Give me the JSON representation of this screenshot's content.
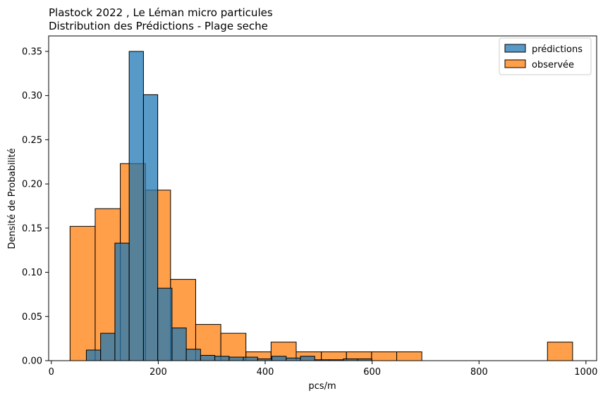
{
  "chart_data": {
    "type": "bar",
    "title_line1": "Plastock 2022 , Le Léman micro particules",
    "title_line2": "Distribution des Prédictions - Plage seche",
    "xlabel": "pcs/m",
    "ylabel": "Densité de Probabilité",
    "xlim": [
      -5,
      1020
    ],
    "ylim": [
      0,
      0.3675
    ],
    "x_ticks": [
      0,
      200,
      400,
      600,
      800,
      1000
    ],
    "y_ticks": [
      0.0,
      0.05,
      0.1,
      0.15,
      0.2,
      0.25,
      0.3,
      0.35
    ],
    "x_tick_labels": [
      "0",
      "200",
      "400",
      "600",
      "800",
      "1000"
    ],
    "y_tick_labels": [
      "0.00",
      "0.05",
      "0.10",
      "0.15",
      "0.20",
      "0.25",
      "0.30",
      "0.35"
    ],
    "legend": {
      "placement": "top-right",
      "entries": [
        "prédictions",
        "observée"
      ]
    },
    "colors": {
      "predictions": "#1f77b4",
      "observed": "#ff7f0e",
      "overlap": "#4b7d8e",
      "edge": "#000000"
    },
    "series": [
      {
        "name": "observée",
        "bin_width": 47,
        "bins": [
          {
            "x0": 35,
            "value": 0.152
          },
          {
            "x0": 82,
            "value": 0.172
          },
          {
            "x0": 129,
            "value": 0.223
          },
          {
            "x0": 176,
            "value": 0.193
          },
          {
            "x0": 223,
            "value": 0.092
          },
          {
            "x0": 270,
            "value": 0.041
          },
          {
            "x0": 317,
            "value": 0.031
          },
          {
            "x0": 364,
            "value": 0.01
          },
          {
            "x0": 411,
            "value": 0.021
          },
          {
            "x0": 458,
            "value": 0.01
          },
          {
            "x0": 505,
            "value": 0.01
          },
          {
            "x0": 552,
            "value": 0.01
          },
          {
            "x0": 599,
            "value": 0.01
          },
          {
            "x0": 646,
            "value": 0.01
          },
          {
            "x0": 928,
            "value": 0.021
          }
        ]
      },
      {
        "name": "prédictions",
        "bin_width": 26.7,
        "bins": [
          {
            "x0": 65.5,
            "value": 0.012
          },
          {
            "x0": 92.2,
            "value": 0.031
          },
          {
            "x0": 118.9,
            "value": 0.133
          },
          {
            "x0": 145.6,
            "value": 0.35
          },
          {
            "x0": 172.3,
            "value": 0.301
          },
          {
            "x0": 199.0,
            "value": 0.082
          },
          {
            "x0": 225.7,
            "value": 0.037
          },
          {
            "x0": 252.4,
            "value": 0.013
          },
          {
            "x0": 279.1,
            "value": 0.006
          },
          {
            "x0": 305.8,
            "value": 0.005
          },
          {
            "x0": 332.5,
            "value": 0.004
          },
          {
            "x0": 359.2,
            "value": 0.004
          },
          {
            "x0": 385.9,
            "value": 0.002
          },
          {
            "x0": 412.6,
            "value": 0.005
          },
          {
            "x0": 439.3,
            "value": 0.003
          },
          {
            "x0": 466.0,
            "value": 0.005
          },
          {
            "x0": 492.7,
            "value": 0.001
          },
          {
            "x0": 519.4,
            "value": 0.001
          },
          {
            "x0": 546.1,
            "value": 0.002
          },
          {
            "x0": 572.8,
            "value": 0.002
          }
        ]
      }
    ]
  }
}
